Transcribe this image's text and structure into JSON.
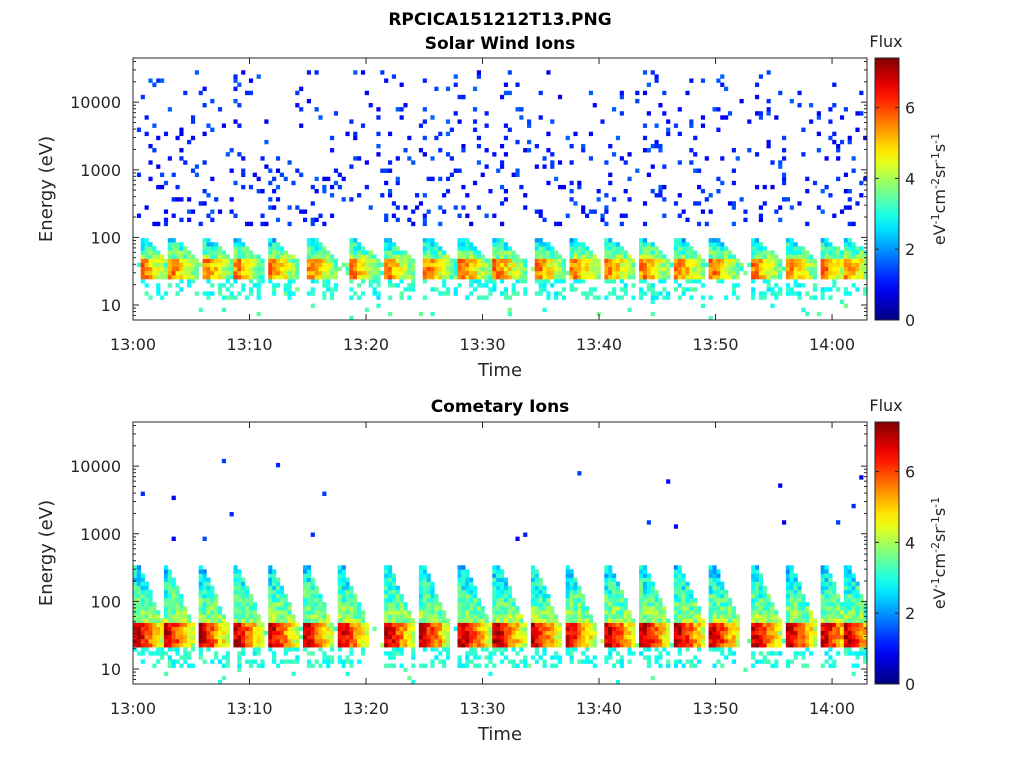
{
  "figure": {
    "title": "RPCICA151212T13.PNG"
  },
  "colormap": "jet",
  "chart_data": [
    {
      "type": "heatmap",
      "title": "Solar Wind Ions",
      "xlabel": "Time",
      "ylabel": "Energy (eV)",
      "y_scale": "log",
      "xlim": [
        "13:00",
        "14:03"
      ],
      "ylim": [
        6,
        45000
      ],
      "x_ticks": [
        "13:00",
        "13:10",
        "13:20",
        "13:30",
        "13:40",
        "13:50",
        "14:00"
      ],
      "y_ticks": [
        "10",
        "100",
        "1000",
        "10000"
      ],
      "colorbar": {
        "title": "Flux",
        "label": "eV-1cm-2sr-1s-1",
        "range": [
          0,
          7.4
        ],
        "ticks": [
          "0",
          "2",
          "4",
          "6"
        ]
      },
      "pulse_times_min": [
        1.0,
        3.5,
        6.5,
        9.0,
        12.0,
        15.5,
        19.0,
        22.0,
        25.5,
        28.5,
        31.5,
        35.0,
        38.0,
        41.0,
        44.0,
        47.0,
        50.0,
        53.5,
        56.5,
        59.5,
        61.5
      ],
      "features": {
        "core_energy_eV": [
          30,
          45
        ],
        "core_flux": 5.5,
        "tail_max_energy_eV": 100,
        "scatter_energy_range_eV": [
          150,
          30000
        ],
        "scatter_flux": 1.2
      }
    },
    {
      "type": "heatmap",
      "title": "Cometary Ions",
      "xlabel": "Time",
      "ylabel": "Energy (eV)",
      "y_scale": "log",
      "xlim": [
        "13:00",
        "14:03"
      ],
      "ylim": [
        6,
        45000
      ],
      "x_ticks": [
        "13:00",
        "13:10",
        "13:20",
        "13:30",
        "13:40",
        "13:50",
        "14:00"
      ],
      "y_ticks": [
        "10",
        "100",
        "1000",
        "10000"
      ],
      "colorbar": {
        "title": "Flux",
        "label": "eV-1cm-2sr-1s-1",
        "range": [
          0,
          7.4
        ],
        "ticks": [
          "0",
          "2",
          "4",
          "6"
        ]
      },
      "pulse_times_min": [
        0.5,
        3.0,
        6.0,
        9.0,
        12.0,
        15.0,
        18.0,
        22.0,
        25.0,
        28.5,
        31.5,
        34.5,
        37.5,
        41.0,
        44.0,
        47.0,
        50.0,
        53.5,
        56.5,
        59.5,
        61.5
      ],
      "features": {
        "core_energy_eV": [
          25,
          45
        ],
        "core_flux": 6.8,
        "tail_max_energy_eV": 350,
        "scatter_energy_range_eV": [
          800,
          14000
        ],
        "scatter_flux": 1.1
      }
    }
  ]
}
